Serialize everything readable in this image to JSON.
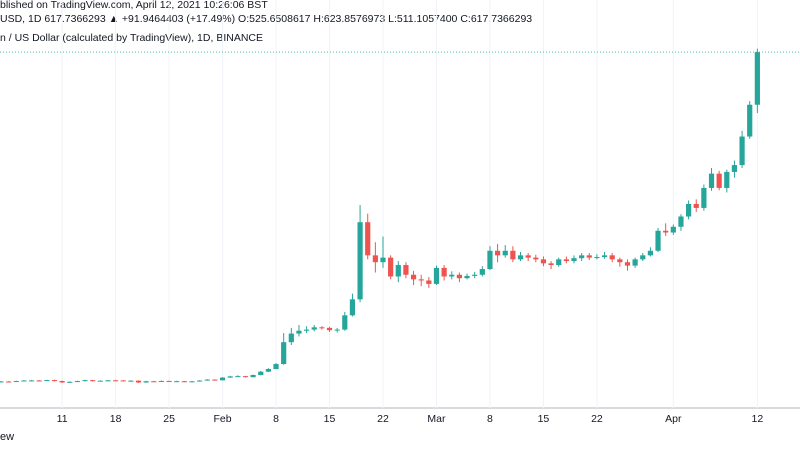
{
  "chart_data": {
    "type": "candlestick",
    "header_lines": [
      "blished on TradingView.com, April 12, 2021 10:26:06 BST",
      "USD, 1D  617.7366293  ▲ +91.9464403 (+17.49%)  O:525.6508617  H:623.8576973  L:511.1057400  C:617.7366293",
      "n / US Dollar (calculated by TradingView), 1D, BINANCE"
    ],
    "footer": "ew",
    "categories": [
      null,
      null,
      null,
      null,
      null,
      null,
      null,
      null,
      "11",
      null,
      null,
      null,
      null,
      null,
      null,
      "18",
      null,
      null,
      null,
      null,
      null,
      null,
      "25",
      null,
      null,
      null,
      null,
      null,
      null,
      "Feb",
      null,
      null,
      null,
      null,
      null,
      null,
      "8",
      null,
      null,
      null,
      null,
      null,
      null,
      "15",
      null,
      null,
      null,
      null,
      null,
      null,
      "22",
      null,
      null,
      null,
      null,
      null,
      null,
      "Mar",
      null,
      null,
      null,
      null,
      null,
      null,
      "8",
      null,
      null,
      null,
      null,
      null,
      null,
      "15",
      null,
      null,
      null,
      null,
      null,
      null,
      "22",
      null,
      null,
      null,
      null,
      null,
      null,
      null,
      null,
      null,
      "Apr",
      null,
      null,
      null,
      null,
      null,
      null,
      null,
      null,
      null,
      null,
      "12"
    ],
    "open": [
      41.0,
      41.2,
      40.8,
      41.9,
      42.9,
      43.0,
      42.6,
      43.6,
      42.0,
      39.5,
      40.6,
      41.9,
      43.5,
      41.8,
      42.5,
      43.2,
      43.0,
      42.2,
      42.6,
      39.4,
      41.6,
      41.0,
      42.1,
      41.3,
      41.7,
      40.2,
      41.5,
      42.8,
      44.5,
      43.2,
      48.0,
      50.1,
      50.5,
      48.7,
      52.5,
      58.3,
      63.0,
      71.7,
      110,
      125,
      130,
      132,
      136,
      135,
      131,
      132,
      157,
      185,
      320,
      262,
      250,
      258,
      225,
      245,
      228,
      220,
      218,
      212,
      240,
      225,
      228,
      222,
      226,
      228,
      238,
      270,
      262,
      270,
      255,
      262,
      258,
      255,
      248,
      245,
      255,
      252,
      257,
      262,
      258,
      259,
      262,
      255,
      250,
      244,
      255,
      262,
      270,
      305,
      302,
      312,
      330,
      352,
      345,
      380,
      405,
      380,
      408,
      420,
      470,
      525.6508617
    ],
    "high": [
      42.0,
      41.9,
      42.5,
      43.6,
      43.9,
      43.8,
      44.2,
      44.3,
      42.8,
      41.5,
      42.6,
      44.3,
      44.0,
      43.2,
      43.9,
      44.0,
      43.6,
      43.4,
      43.1,
      42.2,
      42.3,
      42.8,
      42.6,
      42.4,
      42.1,
      41.9,
      43.5,
      45.3,
      45.0,
      48.9,
      51.2,
      52.0,
      51.0,
      53.4,
      59.8,
      64.5,
      73.5,
      126,
      135,
      140,
      138,
      140,
      138,
      137,
      135,
      163,
      195,
      350,
      335,
      285,
      295,
      262,
      252,
      250,
      235,
      228,
      224,
      244,
      245,
      234,
      232,
      230,
      233,
      243,
      278,
      282,
      280,
      278,
      268,
      266,
      263,
      260,
      252,
      258,
      260,
      262,
      266,
      266,
      264,
      268,
      266,
      258,
      255,
      258,
      266,
      276,
      310,
      318,
      316,
      334,
      358,
      360,
      386,
      415,
      410,
      412,
      428,
      480,
      532,
      623.8576973
    ],
    "low": [
      40.2,
      40.0,
      40.3,
      41.3,
      42.2,
      41.8,
      42.0,
      41.4,
      38.6,
      39.0,
      40.0,
      41.3,
      41.0,
      41.2,
      42.0,
      42.3,
      41.5,
      41.7,
      38.5,
      39.0,
      40.5,
      40.6,
      40.9,
      41.0,
      39.7,
      39.8,
      41.0,
      42.5,
      42.7,
      43.0,
      47.5,
      49.5,
      48.0,
      48.3,
      52.0,
      57.6,
      62.5,
      70.5,
      105,
      120,
      126,
      129,
      132,
      128,
      127,
      130,
      155,
      180,
      255,
      232,
      240,
      220,
      215,
      222,
      210,
      208,
      205,
      210,
      218,
      220,
      215,
      220,
      222,
      225,
      236,
      250,
      258,
      250,
      252,
      252,
      250,
      243,
      238,
      242,
      248,
      248,
      252,
      254,
      255,
      256,
      250,
      242,
      235,
      240,
      252,
      260,
      268,
      296,
      298,
      305,
      325,
      338,
      340,
      375,
      376,
      372,
      398,
      415,
      466,
      511.10574
    ],
    "close": [
      41.2,
      40.8,
      41.9,
      42.9,
      43.0,
      42.6,
      43.6,
      42.0,
      39.5,
      40.6,
      41.9,
      43.5,
      41.8,
      42.5,
      43.2,
      43.0,
      42.2,
      42.6,
      39.4,
      41.6,
      41.0,
      42.1,
      41.3,
      41.7,
      40.2,
      41.5,
      42.8,
      44.5,
      43.2,
      48.0,
      50.1,
      50.5,
      48.7,
      52.5,
      58.3,
      63.0,
      71.7,
      110,
      125,
      130,
      132,
      136,
      135,
      131,
      132,
      157,
      185,
      320,
      262,
      250,
      258,
      225,
      245,
      228,
      220,
      218,
      212,
      240,
      225,
      228,
      222,
      226,
      228,
      238,
      270,
      262,
      270,
      255,
      262,
      258,
      255,
      248,
      245,
      255,
      252,
      257,
      262,
      258,
      259,
      262,
      255,
      250,
      244,
      255,
      262,
      270,
      305,
      302,
      312,
      330,
      352,
      345,
      380,
      405,
      380,
      408,
      420,
      470,
      525.6508617,
      617.7366293
    ],
    "up_color": "#26a69a",
    "down_color": "#ef5350",
    "ylim": [
      0,
      709
    ]
  }
}
